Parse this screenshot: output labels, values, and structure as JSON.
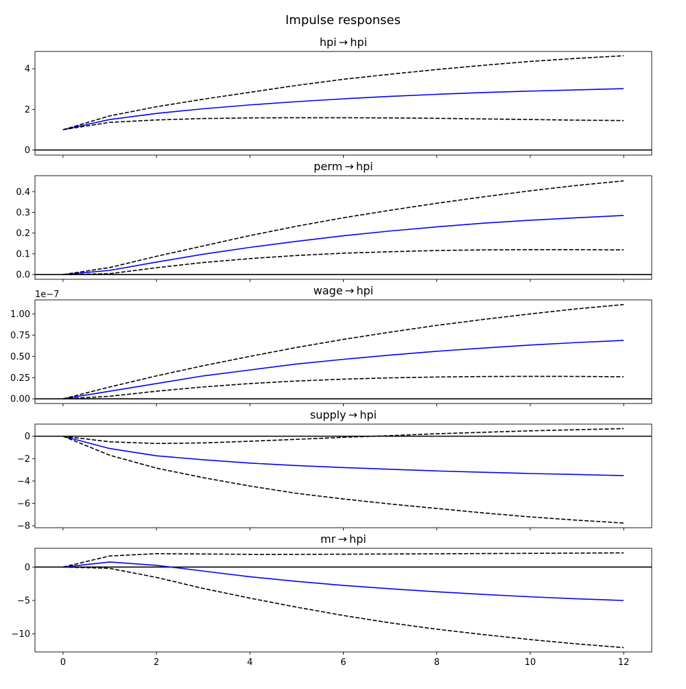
{
  "figure": {
    "title": "Impulse responses"
  },
  "chart_data": [
    {
      "type": "line",
      "title": "hpi → hpi",
      "x": [
        0,
        1,
        2,
        3,
        4,
        5,
        6,
        7,
        8,
        9,
        10,
        11,
        12
      ],
      "xlim": [
        -0.6,
        12.6
      ],
      "ylim": [
        -0.25,
        4.85
      ],
      "yticks": [
        0,
        2,
        4
      ],
      "ytick_labels": [
        "0",
        "2",
        "4"
      ],
      "offset_text": "",
      "series": [
        {
          "role": "response",
          "color": "#0000ff",
          "style": "solid",
          "values": [
            1.0,
            1.5,
            1.8,
            2.03,
            2.22,
            2.38,
            2.52,
            2.64,
            2.74,
            2.83,
            2.9,
            2.96,
            3.02
          ]
        },
        {
          "role": "upper_band",
          "color": "#000000",
          "style": "dashed",
          "values": [
            1.0,
            1.68,
            2.13,
            2.5,
            2.84,
            3.18,
            3.48,
            3.73,
            3.96,
            4.17,
            4.36,
            4.51,
            4.64
          ]
        },
        {
          "role": "lower_band",
          "color": "#000000",
          "style": "dashed",
          "values": [
            1.0,
            1.36,
            1.48,
            1.55,
            1.58,
            1.59,
            1.59,
            1.58,
            1.56,
            1.53,
            1.5,
            1.47,
            1.45
          ]
        }
      ],
      "zero_line": true
    },
    {
      "type": "line",
      "title": "perm → hpi",
      "x": [
        0,
        1,
        2,
        3,
        4,
        5,
        6,
        7,
        8,
        9,
        10,
        11,
        12
      ],
      "xlim": [
        -0.6,
        12.6
      ],
      "ylim": [
        -0.023,
        0.477
      ],
      "yticks": [
        0,
        0.1,
        0.2,
        0.3,
        0.4
      ],
      "ytick_labels": [
        "0.0",
        "0.1",
        "0.2",
        "0.3",
        "0.4"
      ],
      "offset_text": "",
      "series": [
        {
          "role": "response",
          "color": "#0000ff",
          "style": "solid",
          "values": [
            0.0,
            0.02,
            0.06,
            0.098,
            0.131,
            0.16,
            0.187,
            0.21,
            0.23,
            0.248,
            0.262,
            0.274,
            0.285
          ]
        },
        {
          "role": "upper_band",
          "color": "#000000",
          "style": "dashed",
          "values": [
            0.0,
            0.034,
            0.088,
            0.138,
            0.188,
            0.233,
            0.274,
            0.31,
            0.344,
            0.375,
            0.404,
            0.43,
            0.452
          ]
        },
        {
          "role": "lower_band",
          "color": "#000000",
          "style": "dashed",
          "values": [
            0.0,
            0.004,
            0.033,
            0.058,
            0.077,
            0.092,
            0.103,
            0.11,
            0.116,
            0.119,
            0.12,
            0.12,
            0.119
          ]
        }
      ],
      "zero_line": true
    },
    {
      "type": "line",
      "title": "wage → hpi",
      "x": [
        0,
        1,
        2,
        3,
        4,
        5,
        6,
        7,
        8,
        9,
        10,
        11,
        12
      ],
      "xlim": [
        -0.6,
        12.6
      ],
      "ylim": [
        -0.055,
        1.165
      ],
      "yticks": [
        0,
        0.25,
        0.5,
        0.75,
        1.0
      ],
      "ytick_labels": [
        "0.00",
        "0.25",
        "0.50",
        "0.75",
        "1.00"
      ],
      "offset_text": "1e−7",
      "series": [
        {
          "role": "response",
          "color": "#0000ff",
          "style": "solid",
          "values": [
            0.0,
            0.09,
            0.18,
            0.27,
            0.34,
            0.41,
            0.465,
            0.515,
            0.56,
            0.598,
            0.633,
            0.663,
            0.688
          ]
        },
        {
          "role": "upper_band",
          "color": "#000000",
          "style": "dashed",
          "values": [
            0.0,
            0.14,
            0.27,
            0.39,
            0.5,
            0.605,
            0.7,
            0.785,
            0.865,
            0.935,
            1.0,
            1.06,
            1.11
          ]
        },
        {
          "role": "lower_band",
          "color": "#000000",
          "style": "dashed",
          "values": [
            0.0,
            0.03,
            0.09,
            0.14,
            0.18,
            0.21,
            0.232,
            0.247,
            0.257,
            0.263,
            0.265,
            0.264,
            0.26
          ]
        }
      ],
      "zero_line": true
    },
    {
      "type": "line",
      "title": "supply → hpi",
      "x": [
        0,
        1,
        2,
        3,
        4,
        5,
        6,
        7,
        8,
        9,
        10,
        11,
        12
      ],
      "xlim": [
        -0.6,
        12.6
      ],
      "ylim": [
        -8.17,
        1.08
      ],
      "yticks": [
        0,
        -2,
        -4,
        -6,
        -8
      ],
      "ytick_labels": [
        "0",
        "−2",
        "−4",
        "−6",
        "−8"
      ],
      "offset_text": "",
      "series": [
        {
          "role": "response",
          "color": "#0000ff",
          "style": "solid",
          "values": [
            0.0,
            -1.1,
            -1.75,
            -2.1,
            -2.4,
            -2.62,
            -2.8,
            -2.95,
            -3.1,
            -3.22,
            -3.33,
            -3.42,
            -3.52
          ]
        },
        {
          "role": "upper_band",
          "color": "#000000",
          "style": "dashed",
          "values": [
            0.0,
            -0.5,
            -0.65,
            -0.6,
            -0.45,
            -0.28,
            -0.1,
            0.05,
            0.22,
            0.35,
            0.48,
            0.58,
            0.68
          ]
        },
        {
          "role": "lower_band",
          "color": "#000000",
          "style": "dashed",
          "values": [
            0.0,
            -1.7,
            -2.85,
            -3.7,
            -4.45,
            -5.1,
            -5.6,
            -6.05,
            -6.45,
            -6.85,
            -7.2,
            -7.5,
            -7.75
          ]
        }
      ],
      "zero_line": true
    },
    {
      "type": "line",
      "title": "mr → hpi",
      "x": [
        0,
        1,
        2,
        3,
        4,
        5,
        6,
        7,
        8,
        9,
        10,
        11,
        12
      ],
      "xlim": [
        -0.6,
        12.6
      ],
      "ylim": [
        -12.7,
        2.8
      ],
      "yticks": [
        0,
        -5,
        -10
      ],
      "ytick_labels": [
        "0",
        "−5",
        "−10"
      ],
      "offset_text": "",
      "series": [
        {
          "role": "response",
          "color": "#0000ff",
          "style": "solid",
          "values": [
            0.0,
            0.75,
            0.25,
            -0.6,
            -1.45,
            -2.15,
            -2.75,
            -3.25,
            -3.7,
            -4.1,
            -4.45,
            -4.75,
            -5.0
          ]
        },
        {
          "role": "upper_band",
          "color": "#000000",
          "style": "dashed",
          "values": [
            0.0,
            1.65,
            2.0,
            1.95,
            1.9,
            1.9,
            1.92,
            1.95,
            1.98,
            2.02,
            2.05,
            2.08,
            2.12
          ]
        },
        {
          "role": "lower_band",
          "color": "#000000",
          "style": "dashed",
          "values": [
            0.0,
            -0.2,
            -1.55,
            -3.2,
            -4.65,
            -6.0,
            -7.25,
            -8.35,
            -9.3,
            -10.1,
            -10.85,
            -11.5,
            -12.05
          ]
        }
      ],
      "zero_line": true
    }
  ],
  "x_axis": {
    "ticks": [
      0,
      2,
      4,
      6,
      8,
      10,
      12
    ],
    "tick_labels": [
      "0",
      "2",
      "4",
      "6",
      "8",
      "10",
      "12"
    ]
  }
}
